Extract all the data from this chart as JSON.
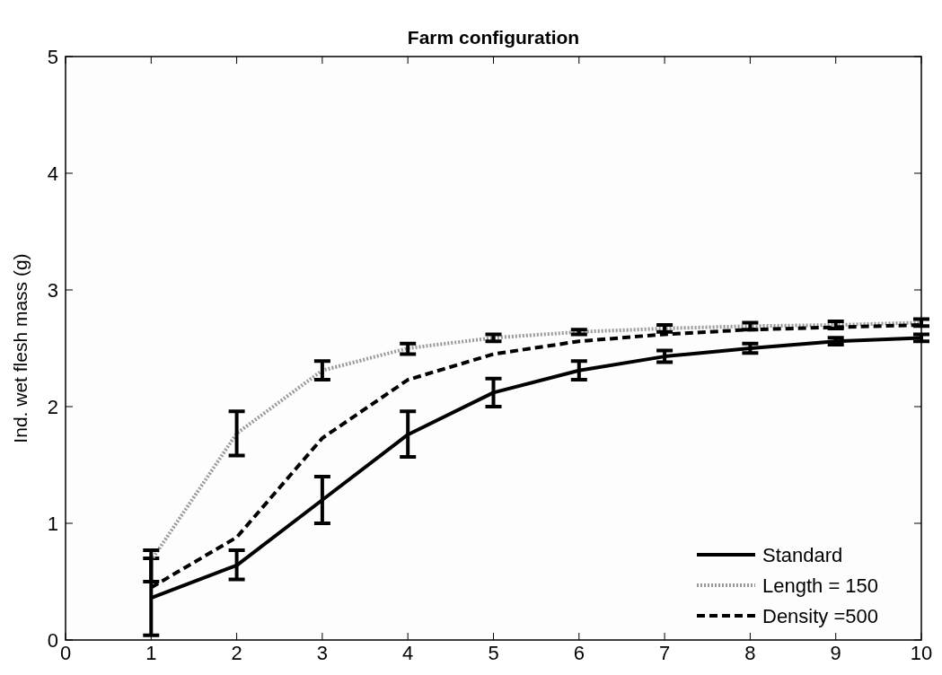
{
  "chart_data": {
    "type": "line",
    "title": "Farm configuration",
    "ylabel": "Ind. wet flesh mass (g)",
    "x": [
      1,
      2,
      3,
      4,
      5,
      6,
      7,
      8,
      9,
      10
    ],
    "xlim": [
      0,
      10
    ],
    "xticks": [
      0,
      1,
      2,
      3,
      4,
      5,
      6,
      7,
      8,
      9,
      10
    ],
    "ylim": [
      0,
      5
    ],
    "yticks": [
      0,
      1,
      2,
      3,
      4,
      5
    ],
    "grid": false,
    "legend": "bottom right",
    "marker": "none",
    "series": [
      {
        "name": "Standard",
        "color": "#000000",
        "line_style": "solid",
        "values": [
          0.36,
          0.64,
          1.2,
          1.76,
          2.12,
          2.31,
          2.43,
          2.5,
          2.56,
          2.59
        ],
        "errors": [
          [
            0.04,
            0.7
          ],
          [
            0.52,
            0.77
          ],
          [
            1.0,
            1.4
          ],
          [
            1.57,
            1.96
          ],
          [
            2.0,
            2.24
          ],
          [
            2.23,
            2.39
          ],
          [
            2.38,
            2.48
          ],
          [
            2.46,
            2.54
          ],
          [
            2.53,
            2.59
          ],
          [
            2.56,
            2.62
          ]
        ]
      },
      {
        "name": "Length = 150",
        "color": "#999999",
        "line_style": "dotted",
        "values": [
          0.68,
          1.77,
          2.31,
          2.5,
          2.59,
          2.64,
          2.67,
          2.69,
          2.7,
          2.72
        ],
        "errors": [
          [
            0.5,
            0.77
          ],
          [
            1.58,
            1.96
          ],
          [
            2.23,
            2.39
          ],
          [
            2.45,
            2.54
          ],
          [
            2.56,
            2.62
          ],
          [
            2.62,
            2.66
          ],
          [
            2.64,
            2.7
          ],
          [
            2.66,
            2.72
          ],
          [
            2.67,
            2.73
          ],
          [
            2.69,
            2.75
          ]
        ]
      },
      {
        "name": "Density =500",
        "color": "#000000",
        "line_style": "dashed",
        "values": [
          0.45,
          0.88,
          1.73,
          2.23,
          2.45,
          2.56,
          2.62,
          2.66,
          2.68,
          2.7
        ]
      }
    ]
  }
}
